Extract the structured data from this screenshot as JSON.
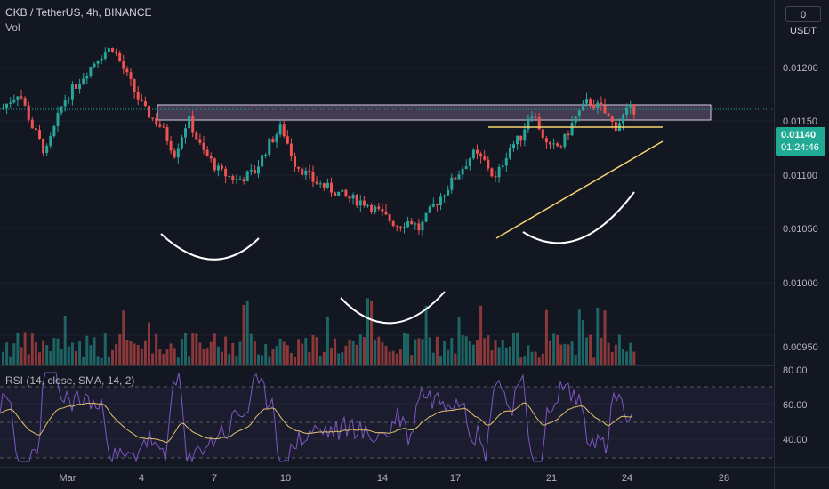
{
  "header": {
    "symbol_line": "CKB / TetherUS, 4h, BINANCE",
    "volume_label": "Vol",
    "currency_button": "0 USDT"
  },
  "price_axis": {
    "ticks": [
      "0.01200",
      "0.01150",
      "0.01100",
      "0.01050",
      "0.01000",
      "0.00950"
    ],
    "current_price": "0.01140",
    "countdown": "01:24:46"
  },
  "rsi": {
    "label": "RSI (14, close, SMA, 14, 2)",
    "ticks": [
      "80.00",
      "60.00",
      "40.00"
    ],
    "left_value": "Vol"
  },
  "time_axis": {
    "ticks": [
      "Mar",
      "4",
      "7",
      "10",
      "14",
      "17",
      "21",
      "24",
      "28"
    ]
  },
  "colors": {
    "background": "#131722",
    "up": "#26a69a",
    "down": "#ef5350",
    "rsi_line": "#7e57c2",
    "rsi_ma": "#e2c36c",
    "zone_fill": "#9c7ea8",
    "trendline": "#f7d36d",
    "pattern_curves": "#ffffff"
  },
  "chart_data": {
    "type": "candlestick",
    "title": "CKB / TetherUS, 4h, BINANCE",
    "ylim": [
      0.0093,
      0.0124
    ],
    "current": 0.0114,
    "resistance_zone": [
      0.01128,
      0.01145
    ],
    "rsi_range": [
      20,
      80
    ],
    "rsi_levels": [
      70,
      50,
      30
    ],
    "x_ticks": [
      "Mar",
      "4",
      "7",
      "10",
      "14",
      "17",
      "21",
      "24",
      "28"
    ]
  }
}
